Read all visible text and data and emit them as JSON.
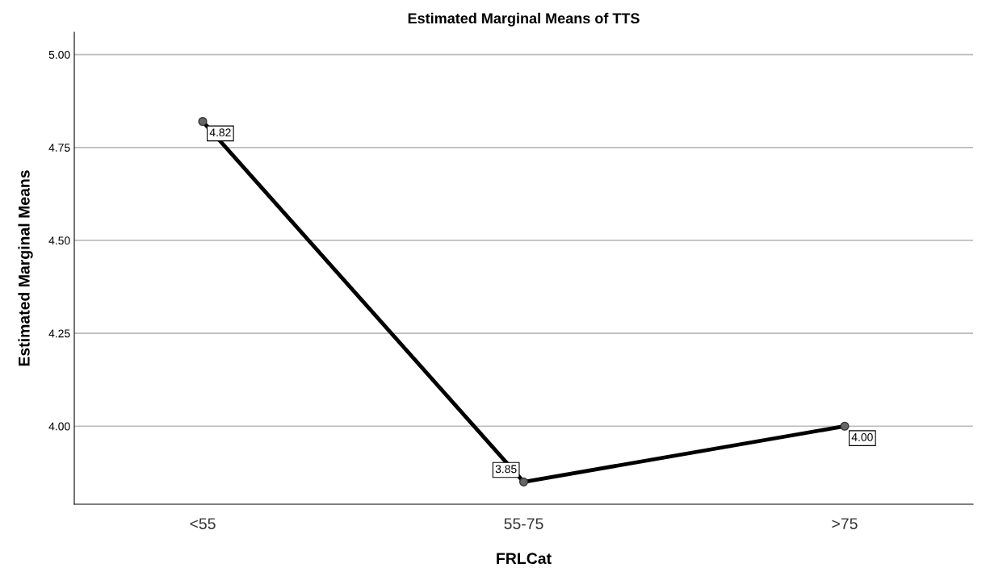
{
  "chart_data": {
    "type": "line",
    "title": "Estimated Marginal Means of TTS",
    "xlabel": "FRLCat",
    "ylabel": "Estimated Marginal Means",
    "categories": [
      "<55",
      "55-75",
      ">75"
    ],
    "series": [
      {
        "color": "#000000",
        "values": [
          4.82,
          3.85,
          4.0
        ],
        "value_labels": [
          "4.82",
          "3.85",
          "4.00"
        ]
      }
    ],
    "ylim": [
      3.79,
      5.06
    ],
    "yticks": [
      {
        "value": 4.0,
        "label": "4.00"
      },
      {
        "value": 4.25,
        "label": "4.25"
      },
      {
        "value": 4.5,
        "label": "4.50"
      },
      {
        "value": 4.75,
        "label": "4.75"
      },
      {
        "value": 5.0,
        "label": "5.00"
      }
    ],
    "grid": "y",
    "marker": "circle",
    "line_style": "solid"
  }
}
